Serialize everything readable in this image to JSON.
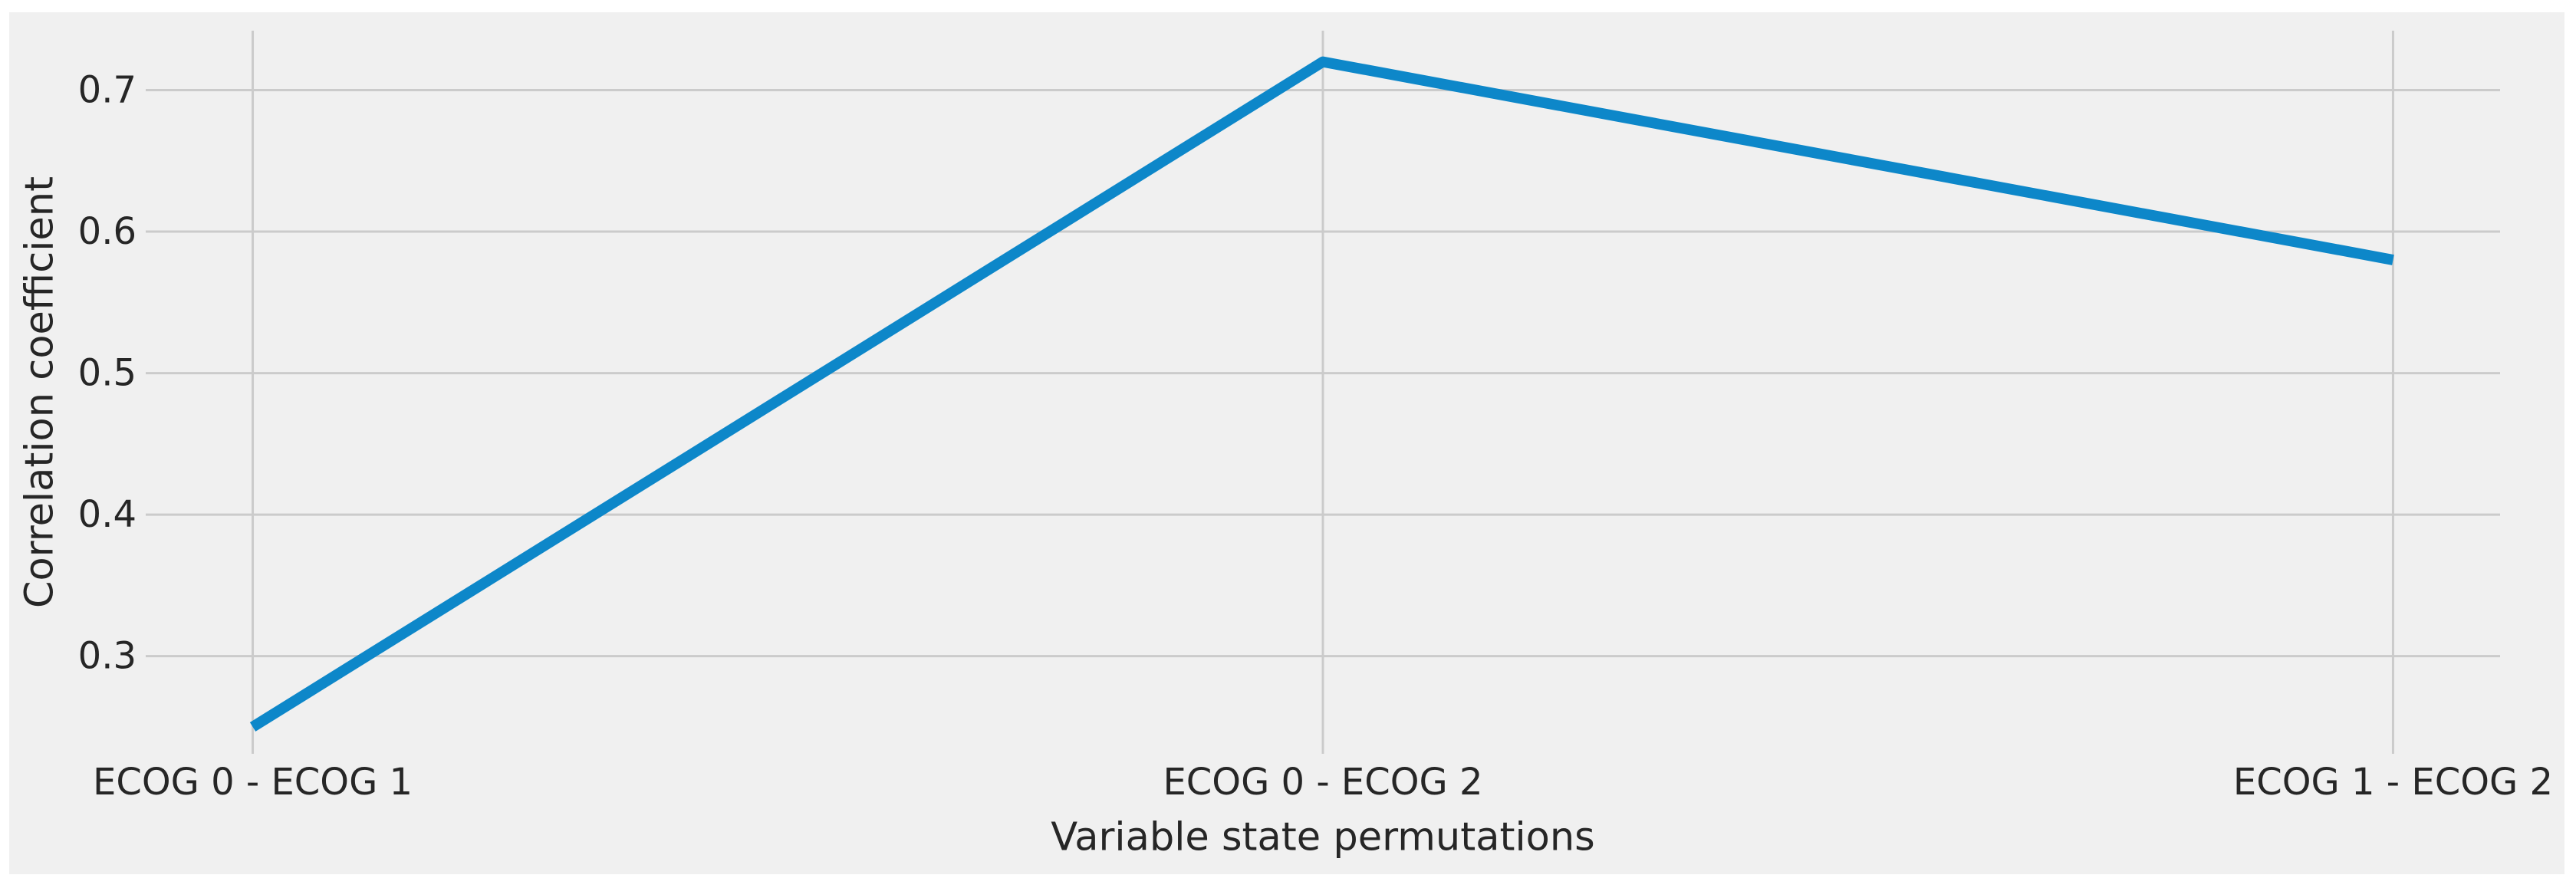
{
  "figure": {
    "page_background": "#ffffff",
    "figure_background": "#f0f0f0",
    "grid_color": "#cbcbcb",
    "text_color": "#262626",
    "line_color": "#0d87c9"
  },
  "chart_data": {
    "type": "line",
    "title": "",
    "xlabel": "Variable state permutations",
    "ylabel": "Correlation coefficient",
    "categories": [
      "ECOG 0 - ECOG 1",
      "ECOG 0 - ECOG 2",
      "ECOG 1 - ECOG 2"
    ],
    "values": [
      0.25,
      0.72,
      0.58
    ],
    "series": [
      {
        "name": "Correlation coefficient",
        "values": [
          0.25,
          0.72,
          0.58
        ]
      }
    ],
    "yticks": [
      0.3,
      0.4,
      0.5,
      0.6,
      0.7
    ],
    "ytick_labels": [
      "0.3",
      "0.4",
      "0.5",
      "0.6",
      "0.7"
    ],
    "ylim": [
      0.231,
      0.742
    ],
    "xlim": [
      -0.1,
      2.1
    ],
    "grid": true,
    "legend_position": "none"
  }
}
